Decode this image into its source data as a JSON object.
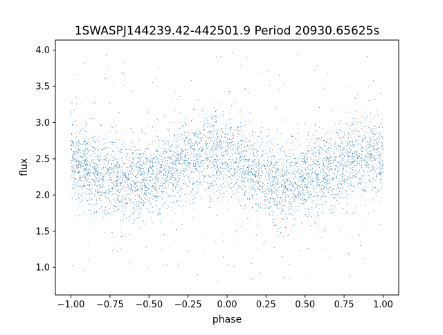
{
  "chart_data": {
    "type": "scatter",
    "title": "1SWASPJ144239.42-442501.9 Period 20930.65625s",
    "xlabel": "phase",
    "ylabel": "flux",
    "xlim": [
      -1.1,
      1.1
    ],
    "ylim": [
      0.62,
      4.14
    ],
    "xticks": [
      -1.0,
      -0.75,
      -0.5,
      -0.25,
      0.0,
      0.25,
      0.5,
      0.75,
      1.0
    ],
    "xtick_labels": [
      "−1.00",
      "−0.75",
      "−0.50",
      "−0.25",
      "0.00",
      "0.25",
      "0.50",
      "0.75",
      "1.00"
    ],
    "yticks": [
      1.0,
      1.5,
      2.0,
      2.5,
      3.0,
      3.5,
      4.0
    ],
    "ytick_labels": [
      "1.0",
      "1.5",
      "2.0",
      "2.5",
      "3.0",
      "3.5",
      "4.0"
    ],
    "grid": false,
    "legend": "none",
    "marker_color": "#1f77b4",
    "series": [
      {
        "x_range": [
          -1.0,
          1.0
        ],
        "trend_phase": [
          -1.0,
          -0.875,
          -0.75,
          -0.625,
          -0.5,
          -0.375,
          -0.25,
          -0.125,
          0.0,
          0.125,
          0.25,
          0.375,
          0.5,
          0.625,
          0.75,
          0.875,
          1.0
        ],
        "trend_flux": [
          2.5,
          2.35,
          2.25,
          2.2,
          2.22,
          2.35,
          2.5,
          2.6,
          2.55,
          2.4,
          2.25,
          2.18,
          2.2,
          2.3,
          2.45,
          2.55,
          2.55
        ],
        "scatter_sigma": 0.28,
        "flux_min": 0.8,
        "flux_max": 4.0
      }
    ]
  }
}
